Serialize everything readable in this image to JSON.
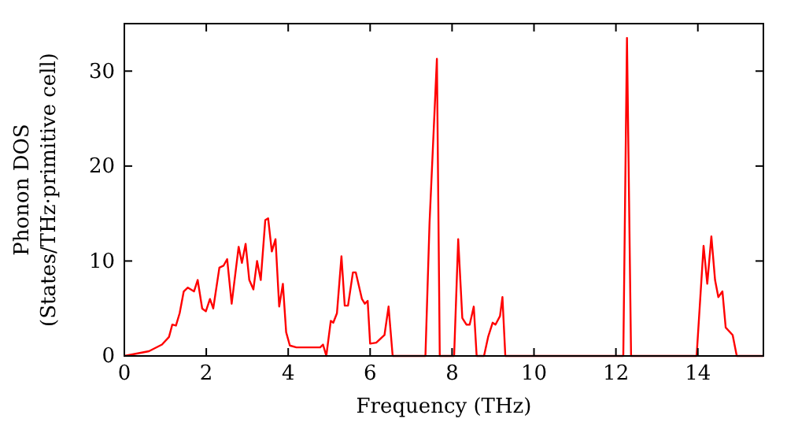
{
  "chart_data": {
    "type": "line",
    "xlabel": "Frequency (THz)",
    "ylabel": "Phonon DOS\n(States/THz·primitive cell)",
    "xlim": [
      0,
      15.6
    ],
    "ylim": [
      0,
      35
    ],
    "xticks": [
      0,
      2,
      4,
      6,
      8,
      10,
      12,
      14
    ],
    "yticks": [
      0,
      10,
      20,
      30
    ],
    "line_style": "solid",
    "series": [
      {
        "color": "#ff0000",
        "x": [
          0,
          0.6,
          0.92,
          1.09,
          1.17,
          1.26,
          1.35,
          1.45,
          1.55,
          1.7,
          1.79,
          1.9,
          1.99,
          2.09,
          2.17,
          2.32,
          2.42,
          2.51,
          2.62,
          2.79,
          2.87,
          2.96,
          3.05,
          3.15,
          3.24,
          3.33,
          3.44,
          3.51,
          3.6,
          3.69,
          3.78,
          3.87,
          3.95,
          4.04,
          4.2,
          4.78,
          4.85,
          4.93,
          5.04,
          5.1,
          5.19,
          5.3,
          5.38,
          5.46,
          5.58,
          5.65,
          5.8,
          5.87,
          5.94,
          6.0,
          6.15,
          6.35,
          6.45,
          6.55,
          7.35,
          7.45,
          7.63,
          7.7,
          8.05,
          8.15,
          8.25,
          8.35,
          8.43,
          8.53,
          8.6,
          8.78,
          8.88,
          8.99,
          9.06,
          9.17,
          9.23,
          9.3,
          12.18,
          12.27,
          12.37,
          13.97,
          14.14,
          14.23,
          14.33,
          14.42,
          14.5,
          14.6,
          14.68,
          14.85,
          14.95,
          15.6
        ],
        "values": [
          0,
          0.5,
          1.2,
          2,
          3.3,
          3.2,
          4.5,
          6.8,
          7.2,
          6.8,
          8,
          5,
          4.7,
          6,
          5,
          9.3,
          9.5,
          10.2,
          5.5,
          11.5,
          9.8,
          11.8,
          8,
          7,
          10,
          8,
          14.3,
          14.5,
          11,
          12.3,
          5.2,
          7.6,
          2.5,
          1.1,
          0.9,
          0.9,
          1.2,
          0,
          3.7,
          3.5,
          4.5,
          10.5,
          5.3,
          5.3,
          8.8,
          8.8,
          6,
          5.5,
          5.8,
          1.3,
          1.4,
          2.2,
          5.2,
          0,
          0,
          14,
          31.3,
          0,
          0,
          12.3,
          4,
          3.3,
          3.3,
          5.2,
          0,
          0,
          2,
          3.5,
          3.3,
          4.2,
          6.2,
          0,
          0,
          33.5,
          0,
          0,
          11.6,
          7.6,
          12.6,
          8,
          6.2,
          6.8,
          3,
          2.2,
          0,
          0
        ]
      }
    ]
  }
}
